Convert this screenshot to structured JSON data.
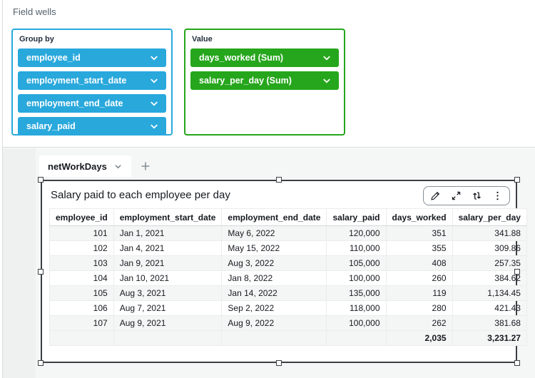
{
  "panel": {
    "title": "Field wells"
  },
  "wells": {
    "group_by": {
      "label": "Group by",
      "accent": "#29a8dc",
      "pills": [
        {
          "label": "employee_id"
        },
        {
          "label": "employment_start_date"
        },
        {
          "label": "employment_end_date"
        },
        {
          "label": "salary_paid"
        }
      ]
    },
    "value": {
      "label": "Value",
      "accent": "#26a61c",
      "pills": [
        {
          "label": "days_worked (Sum)"
        },
        {
          "label": "salary_per_day (Sum)"
        }
      ]
    }
  },
  "sheet": {
    "active_tab": "netWorkDays"
  },
  "visual": {
    "title": "Salary paid to each employee per day",
    "toolbar_icons": [
      "pencil-icon",
      "maximize-icon",
      "swap-arrows-icon",
      "kebab-menu-icon"
    ]
  },
  "icons": {
    "pill_menu": "chevron-down-icon",
    "tab_menu": "chevron-down-icon",
    "add_sheet": "plus-icon"
  },
  "table": {
    "columns": [
      {
        "label": "employee_id",
        "align": "right"
      },
      {
        "label": "employment_start_date",
        "align": "left"
      },
      {
        "label": "employment_end_date",
        "align": "left"
      },
      {
        "label": "salary_paid",
        "align": "right"
      },
      {
        "label": "days_worked",
        "align": "right"
      },
      {
        "label": "salary_per_day",
        "align": "right"
      }
    ],
    "rows": [
      [
        "101",
        "Jan 1, 2021",
        "May 6, 2022",
        "120,000",
        "351",
        "341.88"
      ],
      [
        "102",
        "Jan 4, 2021",
        "May 15, 2022",
        "110,000",
        "355",
        "309.86"
      ],
      [
        "103",
        "Jan 9, 2021",
        "Aug 3, 2022",
        "105,000",
        "408",
        "257.35"
      ],
      [
        "104",
        "Jan 10, 2021",
        "Jan 8, 2022",
        "100,000",
        "260",
        "384.62"
      ],
      [
        "105",
        "Aug 3, 2021",
        "Jan 14, 2022",
        "135,000",
        "119",
        "1,134.45"
      ],
      [
        "106",
        "Aug 7, 2021",
        "Sep 2, 2022",
        "118,000",
        "280",
        "421.43"
      ],
      [
        "107",
        "Aug 9, 2021",
        "Aug 9, 2022",
        "100,000",
        "262",
        "381.68"
      ]
    ],
    "totals": [
      "",
      "",
      "",
      "",
      "2,035",
      "3,231.27"
    ]
  }
}
